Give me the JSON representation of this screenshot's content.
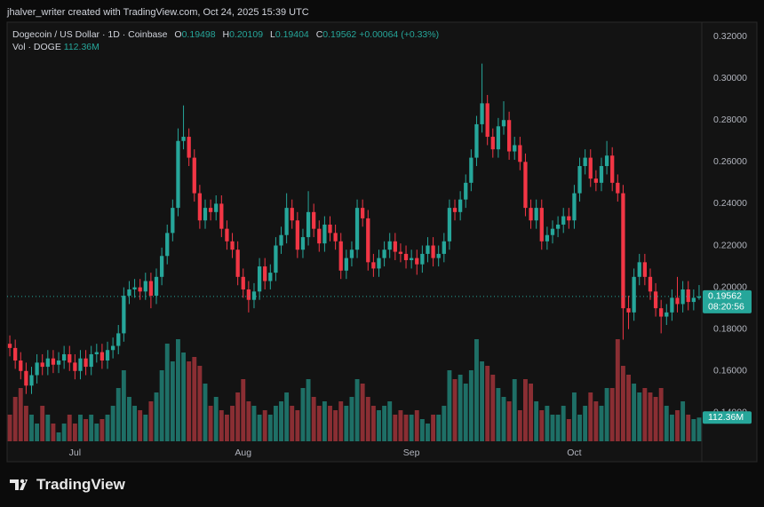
{
  "credit": "jhalver_writer created with TradingView.com, Oct 24, 2025 15:39 UTC",
  "logo": "TradingView",
  "chart_data": {
    "type": "candlestick",
    "title": "Dogecoin / US Dollar · 1D · Coinbase",
    "ohlc_labels": [
      "O",
      "H",
      "L",
      "C"
    ],
    "change": "+0.00064 (+0.33%)",
    "countdown": "08:20:56",
    "up_color": "#26a69a",
    "down_color": "#f23645",
    "up_volume_color": "#1e6f66",
    "down_volume_color": "#8a2e33",
    "ylim": [
      0.1166,
      0.3268
    ],
    "yticks": [
      {
        "value": 0.14,
        "label": "0.14000"
      },
      {
        "value": 0.16,
        "label": "0.16000"
      },
      {
        "value": 0.18,
        "label": "0.18000"
      },
      {
        "value": 0.2,
        "label": "0.20000"
      },
      {
        "value": 0.22,
        "label": "0.22000"
      },
      {
        "value": 0.24,
        "label": "0.24000"
      },
      {
        "value": 0.26,
        "label": "0.26000"
      },
      {
        "value": 0.28,
        "label": "0.28000"
      },
      {
        "value": 0.3,
        "label": "0.30000"
      },
      {
        "value": 0.32,
        "label": "0.32000"
      }
    ],
    "grid": false,
    "categories": [
      null,
      null,
      null,
      null,
      null,
      null,
      null,
      null,
      null,
      null,
      null,
      null,
      "Jul",
      null,
      null,
      null,
      null,
      null,
      null,
      null,
      null,
      null,
      null,
      null,
      null,
      null,
      null,
      null,
      null,
      null,
      null,
      null,
      null,
      null,
      null,
      null,
      null,
      null,
      null,
      null,
      null,
      null,
      null,
      "Aug",
      null,
      null,
      null,
      null,
      null,
      null,
      null,
      null,
      null,
      null,
      null,
      null,
      null,
      null,
      null,
      null,
      null,
      null,
      null,
      null,
      null,
      null,
      null,
      null,
      null,
      null,
      null,
      null,
      null,
      null,
      "Sep",
      null,
      null,
      null,
      null,
      null,
      null,
      null,
      null,
      null,
      null,
      null,
      null,
      null,
      null,
      null,
      null,
      null,
      null,
      null,
      null,
      null,
      null,
      null,
      null,
      null,
      null,
      null,
      null,
      null,
      "Oct",
      null,
      null,
      null,
      null,
      null,
      null,
      null,
      null,
      null,
      null,
      null,
      null,
      null,
      null,
      null,
      null,
      null,
      null,
      null,
      null,
      null,
      null,
      null
    ],
    "open": [
      0.173,
      0.171,
      0.165,
      0.16,
      0.153,
      0.158,
      0.164,
      0.162,
      0.166,
      0.163,
      0.165,
      0.168,
      0.164,
      0.16,
      0.166,
      0.162,
      0.168,
      0.169,
      0.165,
      0.17,
      0.172,
      0.178,
      0.196,
      0.199,
      0.2,
      0.198,
      0.203,
      0.196,
      0.205,
      0.215,
      0.226,
      0.238,
      0.27,
      0.272,
      0.262,
      0.245,
      0.232,
      0.238,
      0.236,
      0.24,
      0.228,
      0.222,
      0.218,
      0.205,
      0.199,
      0.194,
      0.198,
      0.21,
      0.203,
      0.207,
      0.22,
      0.225,
      0.238,
      0.232,
      0.218,
      0.224,
      0.236,
      0.228,
      0.221,
      0.23,
      0.226,
      0.222,
      0.208,
      0.214,
      0.218,
      0.238,
      0.233,
      0.212,
      0.209,
      0.214,
      0.218,
      0.222,
      0.217,
      0.216,
      0.213,
      0.214,
      0.211,
      0.216,
      0.22,
      0.214,
      0.216,
      0.222,
      0.238,
      0.236,
      0.242,
      0.25,
      0.262,
      0.278,
      0.288,
      0.272,
      0.266,
      0.277,
      0.28,
      0.265,
      0.268,
      0.26,
      0.238,
      0.232,
      0.238,
      0.222,
      0.225,
      0.228,
      0.23,
      0.234,
      0.232,
      0.245,
      0.258,
      0.262,
      0.252,
      0.25,
      0.258,
      0.263,
      0.25,
      0.245,
      0.19,
      0.188,
      0.205,
      0.212,
      0.205,
      0.198,
      0.19,
      0.186,
      0.188,
      0.195,
      0.192,
      0.199,
      0.193,
      0.19498
    ],
    "high": [
      0.177,
      0.175,
      0.169,
      0.164,
      0.162,
      0.168,
      0.168,
      0.17,
      0.17,
      0.169,
      0.172,
      0.172,
      0.168,
      0.17,
      0.17,
      0.172,
      0.173,
      0.173,
      0.174,
      0.176,
      0.182,
      0.2,
      0.203,
      0.204,
      0.204,
      0.207,
      0.207,
      0.209,
      0.219,
      0.23,
      0.242,
      0.276,
      0.287,
      0.276,
      0.266,
      0.249,
      0.242,
      0.242,
      0.244,
      0.244,
      0.232,
      0.226,
      0.222,
      0.209,
      0.203,
      0.202,
      0.214,
      0.214,
      0.211,
      0.224,
      0.229,
      0.245,
      0.242,
      0.236,
      0.228,
      0.246,
      0.24,
      0.232,
      0.234,
      0.234,
      0.23,
      0.226,
      0.218,
      0.222,
      0.242,
      0.242,
      0.237,
      0.216,
      0.218,
      0.222,
      0.226,
      0.226,
      0.221,
      0.22,
      0.218,
      0.218,
      0.22,
      0.224,
      0.224,
      0.22,
      0.226,
      0.242,
      0.242,
      0.246,
      0.254,
      0.266,
      0.282,
      0.307,
      0.292,
      0.276,
      0.281,
      0.289,
      0.284,
      0.272,
      0.272,
      0.264,
      0.242,
      0.242,
      0.242,
      0.229,
      0.232,
      0.234,
      0.238,
      0.238,
      0.249,
      0.262,
      0.266,
      0.266,
      0.256,
      0.262,
      0.27,
      0.267,
      0.254,
      0.249,
      0.196,
      0.209,
      0.216,
      0.216,
      0.209,
      0.202,
      0.194,
      0.192,
      0.199,
      0.205,
      0.203,
      0.203,
      0.199,
      0.20109
    ],
    "low": [
      0.167,
      0.161,
      0.156,
      0.149,
      0.149,
      0.154,
      0.158,
      0.158,
      0.159,
      0.159,
      0.161,
      0.16,
      0.156,
      0.156,
      0.158,
      0.158,
      0.164,
      0.161,
      0.161,
      0.166,
      0.168,
      0.174,
      0.192,
      0.195,
      0.194,
      0.194,
      0.19,
      0.192,
      0.201,
      0.211,
      0.222,
      0.234,
      0.266,
      0.258,
      0.241,
      0.228,
      0.228,
      0.232,
      0.232,
      0.224,
      0.218,
      0.214,
      0.201,
      0.195,
      0.188,
      0.19,
      0.194,
      0.199,
      0.199,
      0.203,
      0.216,
      0.221,
      0.228,
      0.214,
      0.214,
      0.22,
      0.224,
      0.217,
      0.217,
      0.222,
      0.218,
      0.204,
      0.204,
      0.21,
      0.214,
      0.229,
      0.208,
      0.205,
      0.205,
      0.21,
      0.214,
      0.213,
      0.212,
      0.209,
      0.209,
      0.206,
      0.207,
      0.212,
      0.21,
      0.21,
      0.212,
      0.218,
      0.232,
      0.232,
      0.238,
      0.246,
      0.258,
      0.274,
      0.268,
      0.262,
      0.262,
      0.273,
      0.261,
      0.261,
      0.256,
      0.234,
      0.228,
      0.228,
      0.218,
      0.218,
      0.221,
      0.224,
      0.226,
      0.228,
      0.228,
      0.241,
      0.254,
      0.248,
      0.246,
      0.246,
      0.254,
      0.246,
      0.241,
      0.175,
      0.18,
      0.184,
      0.201,
      0.201,
      0.194,
      0.186,
      0.178,
      0.182,
      0.184,
      0.188,
      0.188,
      0.189,
      0.189,
      0.19404
    ],
    "close": [
      0.171,
      0.165,
      0.16,
      0.153,
      0.158,
      0.164,
      0.162,
      0.166,
      0.163,
      0.165,
      0.168,
      0.164,
      0.16,
      0.166,
      0.162,
      0.168,
      0.169,
      0.165,
      0.17,
      0.172,
      0.178,
      0.196,
      0.199,
      0.2,
      0.198,
      0.203,
      0.196,
      0.205,
      0.215,
      0.226,
      0.238,
      0.27,
      0.272,
      0.262,
      0.245,
      0.232,
      0.238,
      0.236,
      0.24,
      0.228,
      0.222,
      0.218,
      0.205,
      0.199,
      0.194,
      0.198,
      0.21,
      0.203,
      0.207,
      0.22,
      0.225,
      0.238,
      0.232,
      0.218,
      0.224,
      0.236,
      0.228,
      0.221,
      0.23,
      0.226,
      0.222,
      0.208,
      0.214,
      0.218,
      0.238,
      0.233,
      0.212,
      0.209,
      0.214,
      0.218,
      0.222,
      0.217,
      0.216,
      0.213,
      0.214,
      0.211,
      0.216,
      0.22,
      0.214,
      0.216,
      0.222,
      0.238,
      0.236,
      0.242,
      0.25,
      0.262,
      0.278,
      0.288,
      0.272,
      0.266,
      0.277,
      0.28,
      0.265,
      0.268,
      0.26,
      0.238,
      0.232,
      0.238,
      0.222,
      0.225,
      0.228,
      0.23,
      0.234,
      0.232,
      0.245,
      0.258,
      0.262,
      0.252,
      0.25,
      0.258,
      0.263,
      0.25,
      0.245,
      0.19,
      0.188,
      0.205,
      0.212,
      0.205,
      0.198,
      0.19,
      0.186,
      0.188,
      0.195,
      0.192,
      0.199,
      0.193,
      0.19498,
      0.19562
    ],
    "volume": {
      "name": "Vol · DOGE",
      "last_label": "112.36M",
      "values": [
        126,
        210,
        252,
        168,
        126,
        84,
        168,
        126,
        84,
        42,
        84,
        126,
        84,
        126,
        105,
        126,
        84,
        105,
        126,
        168,
        252,
        336,
        210,
        168,
        147,
        126,
        189,
        231,
        336,
        462,
        378,
        483,
        420,
        378,
        399,
        357,
        273,
        168,
        210,
        147,
        126,
        168,
        231,
        294,
        189,
        168,
        126,
        147,
        126,
        168,
        189,
        231,
        168,
        147,
        252,
        294,
        210,
        168,
        189,
        168,
        147,
        189,
        168,
        210,
        294,
        273,
        210,
        168,
        147,
        168,
        189,
        126,
        147,
        126,
        126,
        147,
        105,
        84,
        126,
        126,
        168,
        336,
        294,
        315,
        273,
        336,
        483,
        378,
        357,
        315,
        252,
        210,
        189,
        294,
        147,
        294,
        273,
        189,
        147,
        168,
        126,
        126,
        168,
        105,
        231,
        126,
        168,
        231,
        189,
        168,
        252,
        252,
        483,
        357,
        315,
        273,
        231,
        252,
        231,
        210,
        252,
        168,
        126,
        147,
        189,
        126,
        105,
        112.36
      ]
    }
  }
}
